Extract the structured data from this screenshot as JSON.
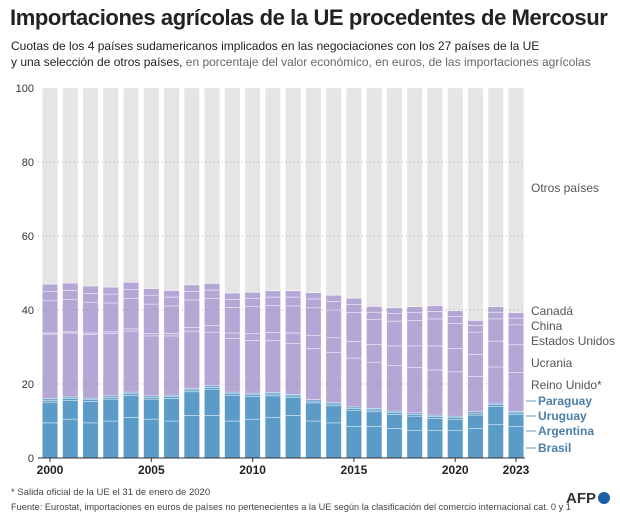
{
  "title": "Importaciones agrícolas de la UE procedentes de Mercosur",
  "subtitle_line1": "Cuotas de los 4 países sudamericanos implicados en las negociaciones con los 27 países de la UE",
  "subtitle_line2_bold": "y una selección de otros países,",
  "subtitle_line2_light": " en porcentaje del valor económico, en euros, de las importaciones agrícolas",
  "footnote": "* Salida oficial de la UE el 31 de enero de 2020",
  "source": "Fuente: Eurostat, importaciones en euros de países no pertenecientes a la UE según la clasificación del comercio internacional cat. 0 y 1",
  "logo": "AFP",
  "colors": {
    "mercosur": "#5b9bc8",
    "others_selected": "#b4a7d6",
    "rest": "#e5e5e5",
    "mercosur_label": "#4a7faa",
    "label": "#555555"
  },
  "chart_data": {
    "type": "bar",
    "stacked": true,
    "ylim": [
      0,
      100
    ],
    "yticks": [
      0,
      20,
      40,
      60,
      80,
      100
    ],
    "xtick_labels": [
      "2000",
      "2005",
      "2010",
      "2015",
      "2020",
      "2023"
    ],
    "grid": true,
    "legend": "right, inline labels",
    "categories": [
      2000,
      2001,
      2002,
      2003,
      2004,
      2005,
      2006,
      2007,
      2008,
      2009,
      2010,
      2011,
      2012,
      2013,
      2014,
      2015,
      2016,
      2017,
      2018,
      2019,
      2020,
      2021,
      2022,
      2023
    ],
    "series": [
      {
        "name": "Brasil",
        "group": "mercosur",
        "values": [
          9.5,
          10.5,
          9.5,
          10,
          11,
          10.5,
          10,
          11.5,
          11.5,
          10,
          10.5,
          11,
          11.5,
          10,
          9.5,
          8.5,
          8.5,
          8,
          7.5,
          7.5,
          7.5,
          8,
          9,
          8.5
        ]
      },
      {
        "name": "Argentina",
        "group": "mercosur",
        "values": [
          5.6,
          5.1,
          5.8,
          5.9,
          5.9,
          5.4,
          6.1,
          6.4,
          7.1,
          6.9,
          6.1,
          5.8,
          4.8,
          4.9,
          4.6,
          4.4,
          4.0,
          3.8,
          3.8,
          3.2,
          2.9,
          3.6,
          4.9,
          3.2
        ]
      },
      {
        "name": "Uruguay",
        "group": "mercosur",
        "values": [
          0.5,
          0.5,
          0.5,
          0.5,
          0.5,
          0.5,
          0.5,
          0.5,
          0.5,
          0.5,
          0.5,
          0.5,
          0.5,
          0.5,
          0.5,
          0.5,
          0.5,
          0.5,
          0.5,
          0.5,
          0.5,
          0.5,
          0.5,
          0.5
        ]
      },
      {
        "name": "Paraguay",
        "group": "mercosur",
        "values": [
          0.4,
          0.4,
          0.4,
          0.4,
          0.4,
          0.4,
          0.4,
          0.4,
          0.4,
          0.4,
          0.4,
          0.4,
          0.4,
          0.4,
          0.4,
          0.4,
          0.4,
          0.4,
          0.4,
          0.4,
          0.4,
          0.4,
          0.4,
          0.4
        ]
      },
      {
        "name": "Reino Unido*",
        "group": "others_selected",
        "values": [
          17.5,
          17.3,
          17.2,
          16.8,
          16.5,
          16.2,
          16.0,
          15.5,
          14.5,
          14.5,
          14.3,
          14.0,
          13.8,
          13.8,
          13.5,
          13.2,
          12.5,
          12.3,
          12.3,
          12.2,
          12.0,
          9.5,
          9.8,
          10.5
        ]
      },
      {
        "name": "Ucrania",
        "group": "others_selected",
        "values": [
          0.3,
          0.3,
          0.4,
          0.5,
          0.6,
          0.6,
          0.7,
          1.0,
          1.8,
          1.5,
          1.8,
          2.2,
          2.8,
          3.5,
          4.0,
          4.5,
          4.8,
          5.3,
          5.8,
          6.5,
          6.3,
          6.0,
          7.0,
          7.5
        ]
      },
      {
        "name": "Estados Unidos",
        "group": "others_selected",
        "values": [
          8.7,
          8.7,
          8.3,
          7.8,
          8.2,
          8.0,
          7.4,
          7.4,
          7.3,
          6.9,
          7.3,
          7.3,
          7.3,
          7.5,
          7.5,
          7.8,
          6.7,
          6.7,
          6.9,
          7.3,
          6.8,
          6.0,
          6.0,
          5.4
        ]
      },
      {
        "name": "China",
        "group": "others_selected",
        "values": [
          2.5,
          2.5,
          2.4,
          2.4,
          2.5,
          2.4,
          2.4,
          2.3,
          2.3,
          2.2,
          2.2,
          2.3,
          2.4,
          2.4,
          2.3,
          2.2,
          2.0,
          2.0,
          2.1,
          2.0,
          1.9,
          1.8,
          1.8,
          1.8
        ]
      },
      {
        "name": "Canadá",
        "group": "others_selected",
        "values": [
          2.0,
          2.0,
          2.0,
          1.9,
          1.9,
          1.8,
          1.8,
          1.8,
          1.8,
          1.7,
          1.7,
          1.7,
          1.7,
          1.7,
          1.7,
          1.7,
          1.6,
          1.6,
          1.6,
          1.6,
          1.5,
          1.4,
          1.5,
          1.5
        ]
      },
      {
        "name": "Otros países",
        "group": "rest",
        "values": [
          53.0,
          52.7,
          53.5,
          53.8,
          52.5,
          54.2,
          54.7,
          53.2,
          52.8,
          55.4,
          55.2,
          54.8,
          54.8,
          55.3,
          56.0,
          56.8,
          59.0,
          59.4,
          59.1,
          58.8,
          60.2,
          62.8,
          59.1,
          60.7
        ]
      }
    ]
  }
}
